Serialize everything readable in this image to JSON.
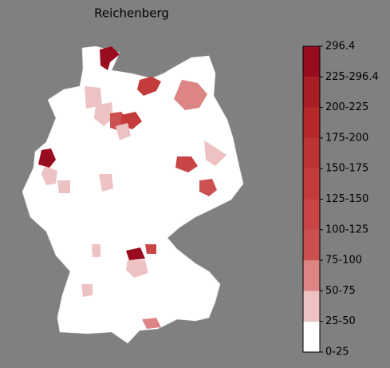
{
  "map": {
    "title": "Reichenberg",
    "colorbar": {
      "labels": [
        "0-25",
        "25-50",
        "50-75",
        "75-100",
        "100-125",
        "125-150",
        "150-175",
        "175-200",
        "200-225",
        "225-296.4",
        "296.4"
      ],
      "colors": [
        "#ffffff",
        "#eec2c2",
        "#dd8585",
        "#cd5050",
        "#c94545",
        "#c43b3b",
        "#bd3232",
        "#b52929",
        "#a91d25",
        "#990c1f"
      ]
    }
  }
}
